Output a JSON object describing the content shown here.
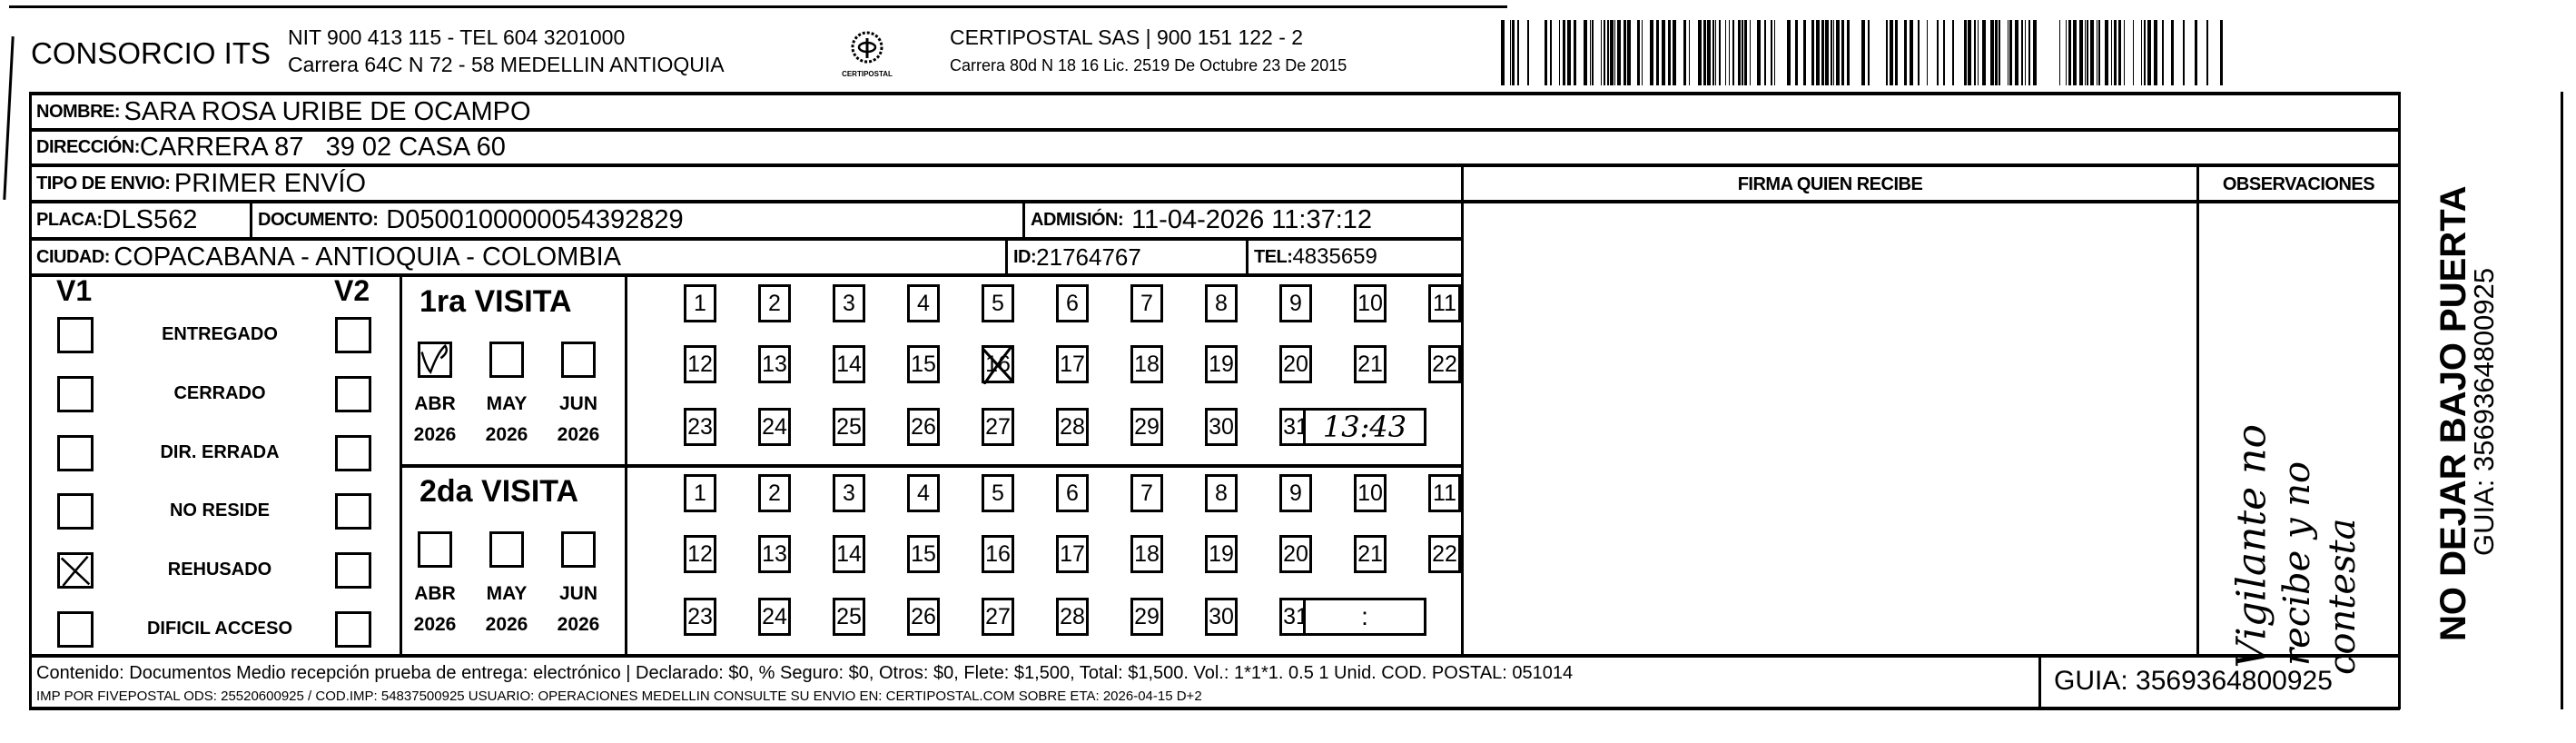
{
  "header": {
    "company": "CONSORCIO ITS",
    "company_line1": "NIT 900 413 115 - TEL 604 3201000",
    "company_line2": "Carrera 64C N 72 - 58 MEDELLIN ANTIOQUIA",
    "logo_text": "CERTIPOSTAL",
    "carrier_line1": "CERTIPOSTAL SAS | 900 151 122 - 2",
    "carrier_line2": "Carrera 80d N 18 16  Lic. 2519 De Octubre 23 De 2015",
    "barcode_value": "3569364800925"
  },
  "recipient": {
    "nombre_label": "NOMBRE:",
    "nombre": "SARA ROSA URIBE DE OCAMPO",
    "direccion_label": "DIRECCIÓN:",
    "direccion": "CARRERA 87   39 02 CASA 60",
    "tipo_label": "TIPO DE ENVIO:",
    "tipo": "PRIMER ENVÍO",
    "placa_label": "PLACA:",
    "placa": "DLS562",
    "documento_label": "DOCUMENTO:",
    "documento": "D0500100000054392829",
    "admision_label": "ADMISIÓN:",
    "admision": "11-04-2026 11:37:12",
    "ciudad_label": "CIUDAD:",
    "ciudad": "COPACABANA - ANTIOQUIA - COLOMBIA",
    "id_label": "ID:",
    "id": "21764767",
    "tel_label": "TEL:",
    "tel": "4835659"
  },
  "firma_label": "FIRMA QUIEN RECIBE",
  "observaciones_label": "OBSERVACIONES",
  "observaciones_handwritten": [
    "Vigilante no",
    "recibe y no",
    "contesta"
  ],
  "status": {
    "v1_label": "V1",
    "v2_label": "V2",
    "items": [
      {
        "label": "ENTREGADO",
        "v1": false,
        "v2": false
      },
      {
        "label": "CERRADO",
        "v1": false,
        "v2": false
      },
      {
        "label": "DIR. ERRADA",
        "v1": false,
        "v2": false
      },
      {
        "label": "NO RESIDE",
        "v1": false,
        "v2": false
      },
      {
        "label": "REHUSADO",
        "v1": true,
        "v2": false
      },
      {
        "label": "DIFICIL ACCESO",
        "v1": false,
        "v2": false
      }
    ]
  },
  "visits": [
    {
      "title": "1ra VISITA",
      "months": [
        {
          "m": "ABR",
          "y": "2026",
          "checked": true
        },
        {
          "m": "MAY",
          "y": "2026",
          "checked": false
        },
        {
          "m": "JUN",
          "y": "2026",
          "checked": false
        }
      ],
      "marked_day": 16,
      "time": "13:43",
      "time_sep": ":"
    },
    {
      "title": "2da VISITA",
      "months": [
        {
          "m": "ABR",
          "y": "2026",
          "checked": false
        },
        {
          "m": "MAY",
          "y": "2026",
          "checked": false
        },
        {
          "m": "JUN",
          "y": "2026",
          "checked": false
        }
      ],
      "marked_day": null,
      "time": "",
      "time_sep": ":"
    }
  ],
  "footer": {
    "line1": "Contenido: Documentos Medio recepción prueba de entrega: electrónico | Declarado: $0, % Seguro: $0, Otros: $0, Flete: $1,500, Total: $1,500. Vol.: 1*1*1. 0.5  1 Unid. COD. POSTAL: 051014",
    "line2": "IMP POR FIVEPOSTAL ODS: 25520600925 / COD.IMP: 54837500925 USUARIO: OPERACIONES MEDELLIN CONSULTE SU ENVIO EN: CERTIPOSTAL.COM SOBRE ETA: 2026-04-15 D+2",
    "guia": "GUIA: 3569364800925"
  },
  "side": {
    "warning": "NO DEJAR BAJO PUERTA",
    "guia": "GUIA: 3569364800925"
  }
}
